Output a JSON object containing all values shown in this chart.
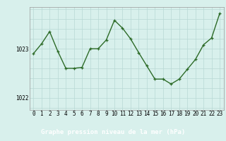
{
  "x": [
    0,
    1,
    2,
    3,
    4,
    5,
    6,
    7,
    8,
    9,
    10,
    11,
    12,
    13,
    14,
    15,
    16,
    17,
    18,
    19,
    20,
    21,
    22,
    23
  ],
  "y": [
    1022.9,
    1023.1,
    1023.35,
    1022.95,
    1022.6,
    1022.6,
    1022.62,
    1023.0,
    1023.0,
    1023.18,
    1023.58,
    1023.42,
    1023.2,
    1022.92,
    1022.65,
    1022.38,
    1022.38,
    1022.28,
    1022.38,
    1022.58,
    1022.78,
    1023.08,
    1023.22,
    1023.72
  ],
  "line_color": "#2d6b28",
  "marker_color": "#2d6b28",
  "bg_color": "#d8f0ec",
  "grid_color": "#b8d8d4",
  "xlabel": "Graphe pression niveau de la mer (hPa)",
  "xlabel_fontsize": 6.5,
  "tick_fontsize": 5.5,
  "ylim": [
    1021.75,
    1023.85
  ],
  "xlim": [
    -0.5,
    23.5
  ],
  "bottom_bg": "#2d6b28",
  "bottom_text_color": "#ffffff"
}
